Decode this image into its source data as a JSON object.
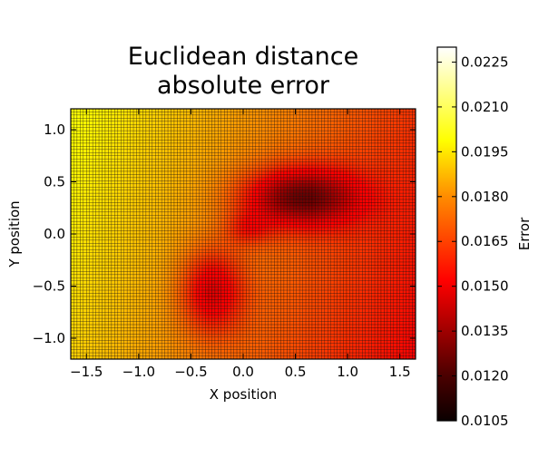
{
  "chart_data": {
    "type": "heatmap",
    "title_lines": [
      "Euclidean distance",
      "absolute error"
    ],
    "xlabel": "X position",
    "ylabel": "Y position",
    "xlim": [
      -1.65,
      1.65
    ],
    "ylim": [
      -1.2,
      1.2
    ],
    "x_ticks": [
      -1.5,
      -1.0,
      -0.5,
      0.0,
      0.5,
      1.0,
      1.5
    ],
    "x_tick_labels": [
      "−1.5",
      "−1.0",
      "−0.5",
      "0.0",
      "0.5",
      "1.0",
      "1.5"
    ],
    "y_ticks": [
      1.0,
      0.5,
      0.0,
      -0.5,
      -1.0
    ],
    "y_tick_labels": [
      "1.0",
      "0.5",
      "0.0",
      "−0.5",
      "−1.0"
    ],
    "grid_cells": {
      "nx": 110,
      "ny": 80
    },
    "value_model": {
      "base": 0.0175,
      "x_slope": -0.0012,
      "y_slope": 0.0004,
      "minima": [
        {
          "x": 0.55,
          "y": 0.35,
          "sx": 0.55,
          "sy": 0.28,
          "depth": 0.0048
        },
        {
          "x": 0.05,
          "y": 0.05,
          "sx": 0.22,
          "sy": 0.16,
          "depth": 0.0016
        },
        {
          "x": -0.3,
          "y": -0.55,
          "sx": 0.3,
          "sy": 0.4,
          "depth": 0.0033
        }
      ]
    },
    "colorbar": {
      "label": "Error",
      "colormap": "hot",
      "vmin": 0.0105,
      "vmax": 0.023,
      "ticks": [
        0.0105,
        0.012,
        0.0135,
        0.015,
        0.0165,
        0.018,
        0.0195,
        0.021,
        0.0225
      ],
      "tick_labels": [
        "0.0105",
        "0.0120",
        "0.0135",
        "0.0150",
        "0.0165",
        "0.0180",
        "0.0195",
        "0.0210",
        "0.0225"
      ]
    },
    "grid": false,
    "legend": "none"
  }
}
